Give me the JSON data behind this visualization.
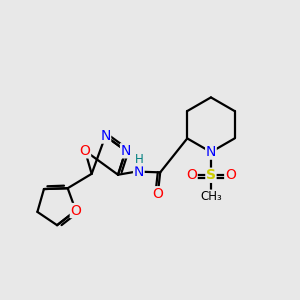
{
  "bg_color": "#e8e8e8",
  "bond_color": "#000000",
  "bond_width": 1.6,
  "atom_colors": {
    "N": "#0000ff",
    "O": "#ff0000",
    "S": "#cccc00",
    "C": "#000000",
    "H": "#008080"
  },
  "font_size_atom": 10,
  "font_size_small": 8.5
}
